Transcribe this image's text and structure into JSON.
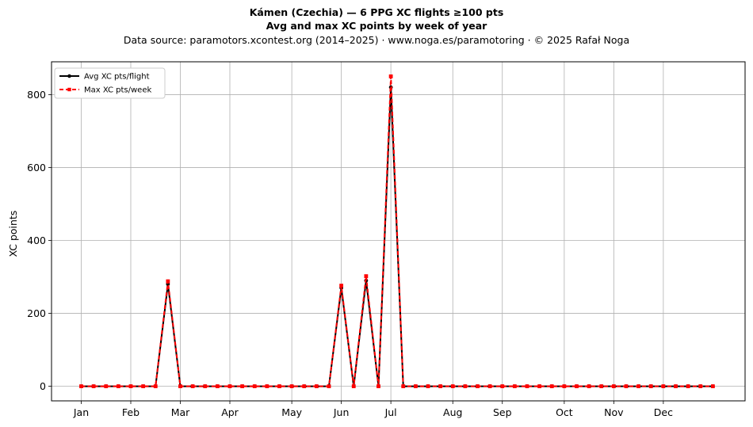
{
  "header": {
    "title": "Kámen (Czechia)  —  6 PPG XC flights ≥100 pts",
    "subtitle": "Avg and max XC points by week of year",
    "source": "Data source: paramotors.xcontest.org (2014–2025)  ·  www.noga.es/paramotoring  ·  © 2025 Rafał Noga"
  },
  "chart_data": {
    "type": "line",
    "title": "Kámen (Czechia)  —  6 PPG XC flights ≥100 pts",
    "subtitle": "Avg and max XC points by week of year",
    "xlabel": "",
    "ylabel": "XC points",
    "x": [
      1,
      2,
      3,
      4,
      5,
      6,
      7,
      8,
      9,
      10,
      11,
      12,
      13,
      14,
      15,
      16,
      17,
      18,
      19,
      20,
      21,
      22,
      23,
      24,
      25,
      26,
      27,
      28,
      29,
      30,
      31,
      32,
      33,
      34,
      35,
      36,
      37,
      38,
      39,
      40,
      41,
      42,
      43,
      44,
      45,
      46,
      47,
      48,
      49,
      50,
      51,
      52
    ],
    "x_tick_positions": [
      1,
      5,
      9,
      13,
      18,
      22,
      26,
      31,
      35,
      40,
      44,
      48
    ],
    "x_tick_labels": [
      "Jan",
      "Feb",
      "Mar",
      "Apr",
      "May",
      "Jun",
      "Jul",
      "Aug",
      "Sep",
      "Oct",
      "Nov",
      "Dec"
    ],
    "xlim": [
      -1.4,
      54.6
    ],
    "ylim": [
      -40,
      890
    ],
    "y_ticks": [
      0,
      200,
      400,
      600,
      800
    ],
    "grid": true,
    "legend_position": "upper-left",
    "series": [
      {
        "name": "Avg XC pts/flight",
        "color": "#000000",
        "style": "solid",
        "marker": "circle",
        "values": [
          0,
          0,
          0,
          0,
          0,
          0,
          0,
          280,
          0,
          0,
          0,
          0,
          0,
          0,
          0,
          0,
          0,
          0,
          0,
          0,
          0,
          270,
          0,
          290,
          0,
          820,
          0,
          0,
          0,
          0,
          0,
          0,
          0,
          0,
          0,
          0,
          0,
          0,
          0,
          0,
          0,
          0,
          0,
          0,
          0,
          0,
          0,
          0,
          0,
          0,
          0,
          0
        ]
      },
      {
        "name": "Max XC pts/week",
        "color": "#ff0000",
        "style": "dashed",
        "marker": "square",
        "values": [
          0,
          0,
          0,
          0,
          0,
          0,
          0,
          288,
          0,
          0,
          0,
          0,
          0,
          0,
          0,
          0,
          0,
          0,
          0,
          0,
          0,
          276,
          0,
          302,
          0,
          850,
          0,
          0,
          0,
          0,
          0,
          0,
          0,
          0,
          0,
          0,
          0,
          0,
          0,
          0,
          0,
          0,
          0,
          0,
          0,
          0,
          0,
          0,
          0,
          0,
          0,
          0
        ]
      }
    ]
  }
}
